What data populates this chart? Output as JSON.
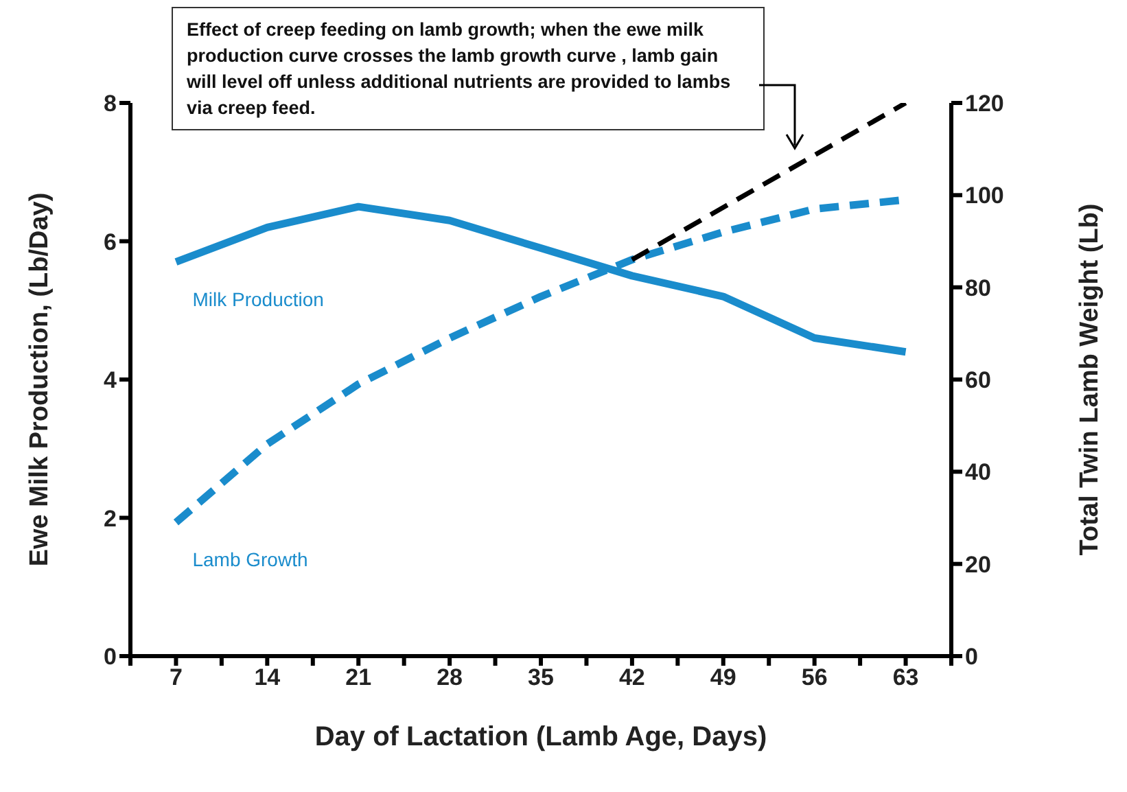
{
  "chart_data": {
    "type": "line",
    "xlabel": "Day of Lactation (Lamb Age, Days)",
    "ylabel": "Ewe Milk Production, (Lb/Day)",
    "y2label": "Total Twin Lamb Weight (Lb)",
    "annotations": [
      "Effect of creep feeding on lamb growth; when the ewe milk production curve crosses the lamb growth curve , lamb gain will level off unless additional nutrients are provided to lambs via creep feed."
    ],
    "x": [
      7,
      14,
      21,
      28,
      35,
      42,
      49,
      56,
      63
    ],
    "xlim": [
      3.5,
      66.5
    ],
    "xticks": [
      {
        "value": 3.5,
        "label": null
      },
      7,
      {
        "value": 10.5,
        "label": null
      },
      14,
      {
        "value": 17.5,
        "label": null
      },
      21,
      {
        "value": 24.5,
        "label": null
      },
      28,
      {
        "value": 31.5,
        "label": null
      },
      35,
      {
        "value": 38.5,
        "label": null
      },
      42,
      {
        "value": 45.5,
        "label": null
      },
      49,
      {
        "value": 52.5,
        "label": null
      },
      56,
      {
        "value": 59.5,
        "label": null
      },
      63,
      {
        "value": 66.5,
        "label": null
      }
    ],
    "ylim": [
      0,
      8
    ],
    "yticks": [
      0,
      2,
      4,
      6,
      8
    ],
    "y2lim": [
      0,
      120
    ],
    "y2ticks": [
      0,
      20,
      40,
      60,
      80,
      100,
      120
    ],
    "marker": "none",
    "series": [
      {
        "name": "Milk Production",
        "color": "#1a8ccc",
        "line_style": "solid",
        "values": [
          5.7,
          6.2,
          6.5,
          6.3,
          5.9,
          5.5,
          5.2,
          4.6,
          4.4
        ]
      },
      {
        "name": "Lamb Growth",
        "color": "#1a8ccc",
        "line_style": "dashed",
        "axis": "y2",
        "values": [
          29,
          46,
          59,
          69,
          78,
          86,
          92,
          97,
          99
        ]
      },
      {
        "color": "#000000",
        "line_style": "dashed",
        "axis": "y2",
        "x": [
          42,
          63
        ],
        "values": [
          86,
          120
        ]
      }
    ]
  }
}
